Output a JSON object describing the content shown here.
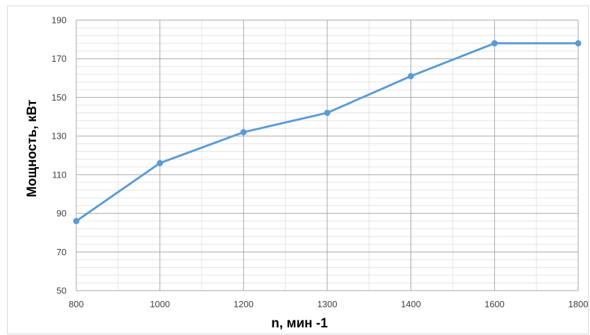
{
  "chart_data": {
    "type": "line",
    "categories": [
      "800",
      "1000",
      "1200",
      "1300",
      "1400",
      "1600",
      "1800"
    ],
    "series": [
      {
        "values": [
          86,
          116,
          132,
          142,
          161,
          178,
          178
        ]
      }
    ],
    "xlabel": "n, мин -1",
    "ylabel": "Мощность, кВт",
    "ylim": [
      50,
      190
    ],
    "yticks": [
      "50",
      "70",
      "90",
      "110",
      "130",
      "150",
      "170",
      "190"
    ],
    "grid": true,
    "minor_grid": true,
    "colors": {
      "series": "#5b9bd5",
      "major_grid": "#a6a6a6",
      "minor_grid": "#e3e3e3"
    }
  }
}
